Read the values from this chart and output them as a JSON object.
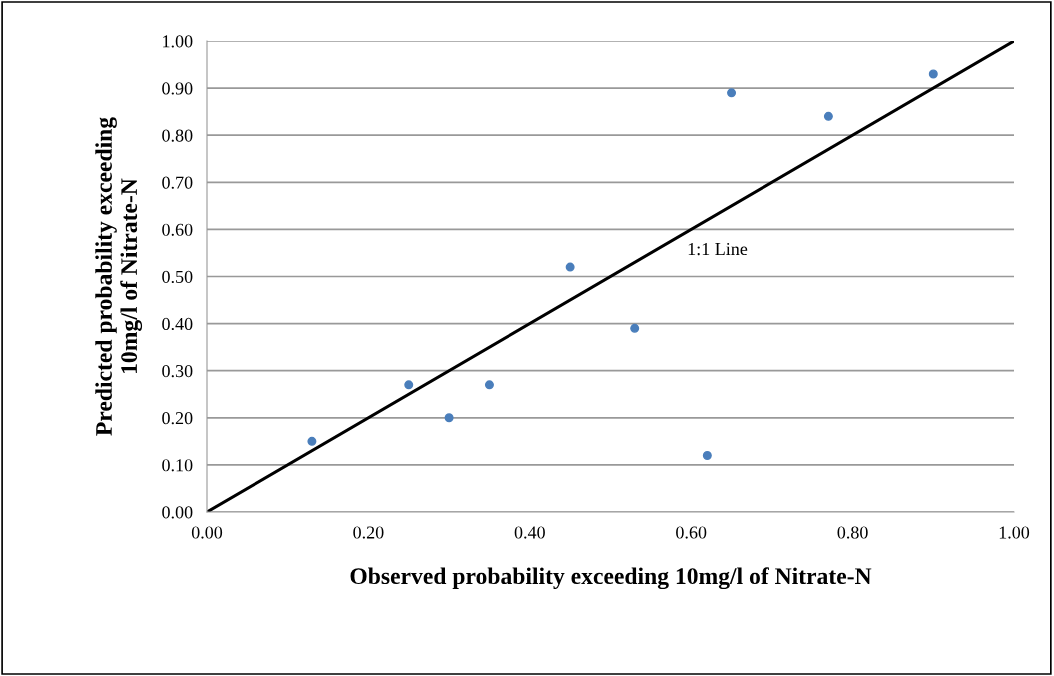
{
  "chart_data": {
    "type": "scatter",
    "xlabel": "Observed probability exceeding 10mg/l of Nitrate-N",
    "ylabel": "Predicted probability exceeding\n10mg/l of Nitrate-N",
    "series": [
      {
        "marker": "circle",
        "color": "#4a7ebb",
        "x": [
          0.13,
          0.25,
          0.3,
          0.35,
          0.45,
          0.53,
          0.62,
          0.65,
          0.77,
          0.9
        ],
        "values": [
          0.15,
          0.27,
          0.2,
          0.27,
          0.52,
          0.39,
          0.12,
          0.89,
          0.84,
          0.93
        ]
      },
      {
        "type": "line",
        "marker": "none",
        "color": "#000000",
        "x": [
          0,
          1
        ],
        "values": [
          0,
          1
        ]
      }
    ],
    "annotations": [
      "1:1 Line"
    ],
    "xlim": [
      0,
      1
    ],
    "ylim": [
      0,
      1
    ],
    "xticks": [
      {
        "value": 0,
        "label": "0.00"
      },
      {
        "value": 0.2,
        "label": "0.20"
      },
      {
        "value": 0.4,
        "label": "0.40"
      },
      {
        "value": 0.6,
        "label": "0.60"
      },
      {
        "value": 0.8,
        "label": "0.80"
      },
      {
        "value": 1,
        "label": "1.00"
      }
    ],
    "yticks": [
      {
        "value": 0,
        "label": "0.00"
      },
      {
        "value": 0.1,
        "label": "0.10"
      },
      {
        "value": 0.2,
        "label": "0.20"
      },
      {
        "value": 0.3,
        "label": "0.30"
      },
      {
        "value": 0.4,
        "label": "0.40"
      },
      {
        "value": 0.5,
        "label": "0.50"
      },
      {
        "value": 0.6,
        "label": "0.60"
      },
      {
        "value": 0.7,
        "label": "0.70"
      },
      {
        "value": 0.8,
        "label": "0.80"
      },
      {
        "value": 0.9,
        "label": "0.90"
      },
      {
        "value": 1,
        "label": "1.00"
      }
    ],
    "grid": "y"
  }
}
